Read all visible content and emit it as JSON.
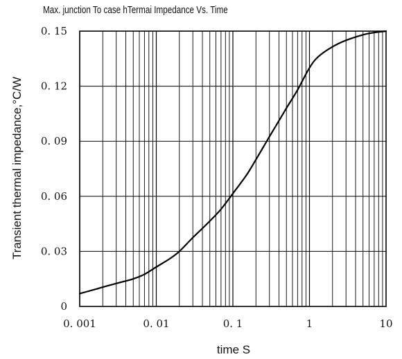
{
  "chart_data": {
    "type": "line",
    "title": "Max.   junction  To  case hTermai  Impedance  Vs. Time",
    "xlabel": "time   S",
    "ylabel": "Transient thermal impedance,°C/W",
    "x_scale": "log",
    "xlim": [
      0.001,
      10
    ],
    "ylim": [
      0,
      0.15
    ],
    "grid": true,
    "x_tick_values": [
      0.001,
      0.01,
      0.1,
      1,
      10
    ],
    "x_tick_labels": [
      "0. 001",
      "0. 01",
      "0. 1",
      "1",
      "10"
    ],
    "y_tick_values": [
      0,
      0.03,
      0.06,
      0.09,
      0.12,
      0.15
    ],
    "y_tick_labels": [
      "0",
      "0. 03",
      "0. 06",
      "0. 09",
      "0. 12",
      "0. 15"
    ],
    "series": [
      {
        "color": "#000000",
        "x": [
          0.001,
          0.0015,
          0.002,
          0.003,
          0.005,
          0.007,
          0.01,
          0.015,
          0.02,
          0.03,
          0.05,
          0.07,
          0.1,
          0.15,
          0.2,
          0.3,
          0.5,
          0.7,
          1,
          1.3,
          2,
          3,
          5,
          7,
          10
        ],
        "y": [
          0.007,
          0.009,
          0.0105,
          0.0125,
          0.015,
          0.0175,
          0.0215,
          0.026,
          0.03,
          0.0375,
          0.0465,
          0.053,
          0.0615,
          0.0715,
          0.08,
          0.0925,
          0.108,
          0.118,
          0.13,
          0.136,
          0.1415,
          0.145,
          0.148,
          0.1492,
          0.15
        ]
      }
    ]
  }
}
